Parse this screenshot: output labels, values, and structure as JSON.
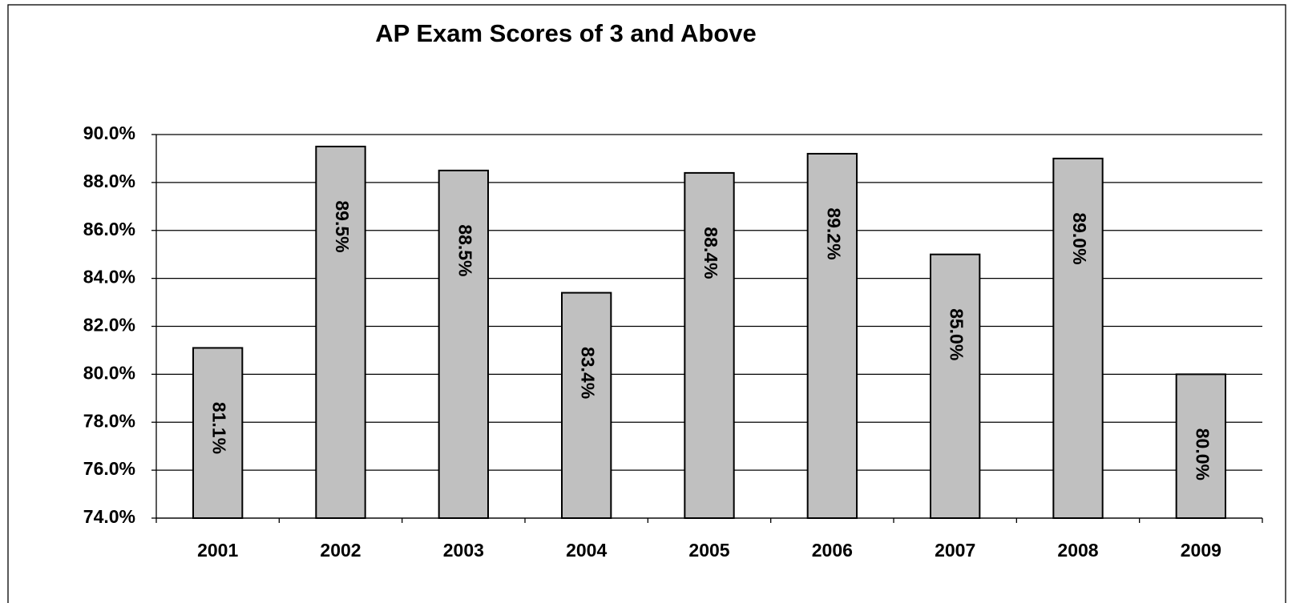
{
  "chart_data": {
    "type": "bar",
    "title": "AP Exam Scores of 3 and Above",
    "categories": [
      "2001",
      "2002",
      "2003",
      "2004",
      "2005",
      "2006",
      "2007",
      "2008",
      "2009"
    ],
    "values": [
      81.1,
      89.5,
      88.5,
      83.4,
      88.4,
      89.2,
      85.0,
      89.0,
      80.0
    ],
    "value_labels": [
      "81.1%",
      "89.5%",
      "88.5%",
      "83.4%",
      "88.4%",
      "89.2%",
      "85.0%",
      "89.0%",
      "80.0%"
    ],
    "color": "#c0c0c0",
    "ylim": [
      74,
      90
    ],
    "yticks": [
      {
        "value": 74,
        "label": "74.0%"
      },
      {
        "value": 76,
        "label": "76.0%"
      },
      {
        "value": 78,
        "label": "78.0%"
      },
      {
        "value": 80,
        "label": "80.0%"
      },
      {
        "value": 82,
        "label": "82.0%"
      },
      {
        "value": 84,
        "label": "84.0%"
      },
      {
        "value": 86,
        "label": "86.0%"
      },
      {
        "value": 88,
        "label": "88.0%"
      },
      {
        "value": 90,
        "label": "90.0%"
      }
    ],
    "grid": true
  }
}
